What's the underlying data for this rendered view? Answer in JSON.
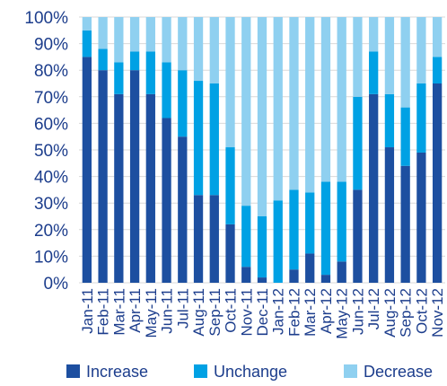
{
  "chart_data": {
    "type": "bar",
    "stacked": true,
    "normalized": true,
    "categories": [
      "Jan-11",
      "Feb-11",
      "Mar-11",
      "Apr-11",
      "May-11",
      "Jun-11",
      "Jul-11",
      "Aug-11",
      "Sep-11",
      "Oct-11",
      "Nov-11",
      "Dec-11",
      "Jan-12",
      "Feb-12",
      "Mar-12",
      "Apr-12",
      "May-12",
      "Jun-12",
      "Jul-12",
      "Aug-12",
      "Sep-12",
      "Oct-12",
      "Nov-12"
    ],
    "series": [
      {
        "name": "Increase",
        "color": "#1d4fa0",
        "values": [
          85,
          80,
          71,
          80,
          71,
          62,
          55,
          33,
          33,
          22,
          6,
          2,
          0,
          5,
          11,
          3,
          8,
          35,
          71,
          51,
          44,
          49,
          75
        ]
      },
      {
        "name": "Unchange",
        "color": "#00a1e4",
        "values": [
          10,
          8,
          12,
          7,
          16,
          21,
          25,
          43,
          42,
          29,
          23,
          23,
          31,
          30,
          23,
          35,
          30,
          35,
          16,
          20,
          22,
          26,
          10
        ]
      },
      {
        "name": "Decrease",
        "color": "#8fd0f0",
        "values": [
          5,
          12,
          17,
          13,
          13,
          17,
          20,
          24,
          25,
          49,
          71,
          75,
          69,
          65,
          66,
          62,
          62,
          30,
          13,
          29,
          34,
          25,
          15
        ]
      }
    ],
    "y_ticks": [
      "0%",
      "10%",
      "20%",
      "30%",
      "40%",
      "50%",
      "60%",
      "70%",
      "80%",
      "90%",
      "100%"
    ],
    "ylim": [
      0,
      100
    ],
    "title": "",
    "xlabel": "",
    "ylabel": "",
    "legend_position": "bottom",
    "grid": true
  }
}
